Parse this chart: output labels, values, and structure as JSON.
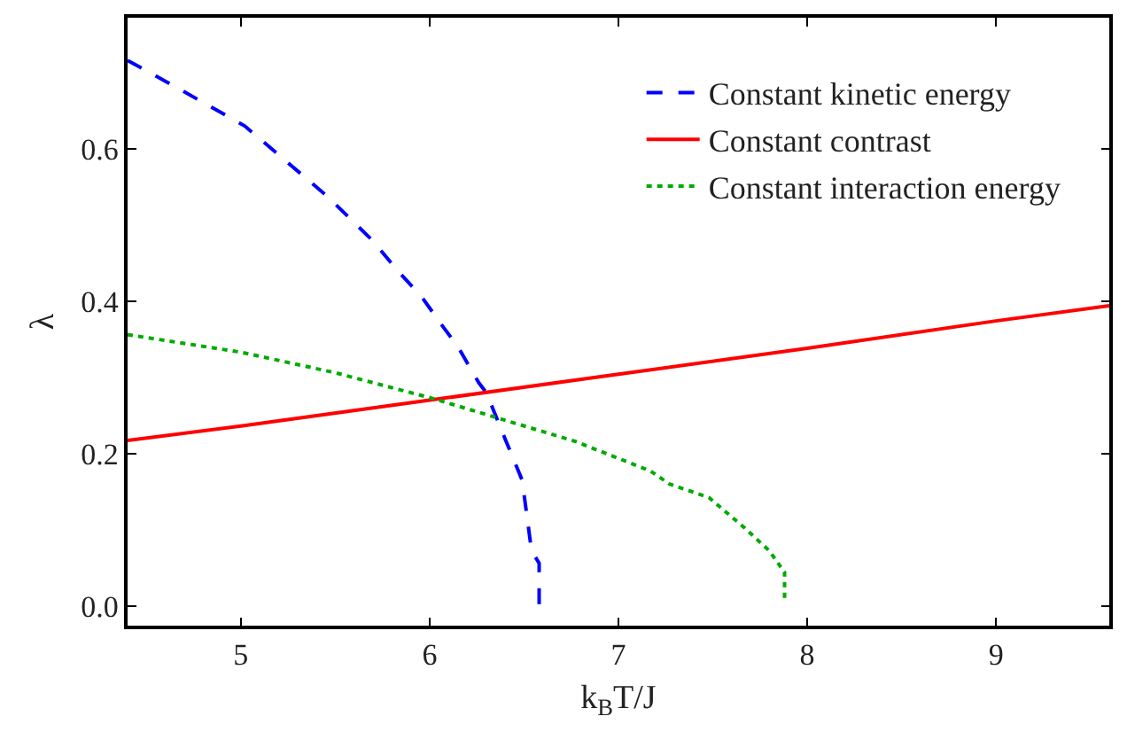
{
  "chart_data": {
    "type": "line",
    "xlabel": "k$_{B}$T/J",
    "ylabel": "λ",
    "xlim": [
      4.4,
      9.6
    ],
    "xticks": [
      5,
      6,
      7,
      8,
      9
    ],
    "ylim": [
      -0.026,
      0.772
    ],
    "yticks": [
      {
        "value": 0,
        "label": "0.0"
      },
      0.2,
      0.4,
      0.6
    ],
    "legend": "top right",
    "series": [
      {
        "name": "Constant kinetic energy",
        "color": "#0000ff",
        "line_style": "dashed",
        "x": [
          4.4,
          4.67,
          5.02,
          5.21,
          5.46,
          5.7,
          5.83,
          5.96,
          6.06,
          6.15,
          6.26,
          6.3,
          6.4,
          6.49,
          6.54,
          6.58,
          6.58
        ],
        "values": [
          0.716,
          0.679,
          0.63,
          0.59,
          0.537,
          0.479,
          0.44,
          0.405,
          0.37,
          0.34,
          0.293,
          0.28,
          0.219,
          0.165,
          0.072,
          0.056,
          0.002
        ]
      },
      {
        "name": "Constant contrast",
        "color": "#ff0000",
        "line_style": "solid",
        "x": [
          4.4,
          5,
          6,
          7,
          8,
          9,
          9.6
        ],
        "values": [
          0.217,
          0.236,
          0.27,
          0.304,
          0.338,
          0.374,
          0.394
        ]
      },
      {
        "name": "Constant interaction energy",
        "color": "#00aa00",
        "line_style": "dotted",
        "x": [
          4.4,
          5.0,
          5.5,
          6.02,
          6.77,
          7.17,
          7.27,
          7.48,
          7.67,
          7.8,
          7.88,
          7.88
        ],
        "values": [
          0.356,
          0.333,
          0.306,
          0.272,
          0.216,
          0.177,
          0.16,
          0.142,
          0.102,
          0.072,
          0.044,
          0.007
        ]
      }
    ]
  }
}
